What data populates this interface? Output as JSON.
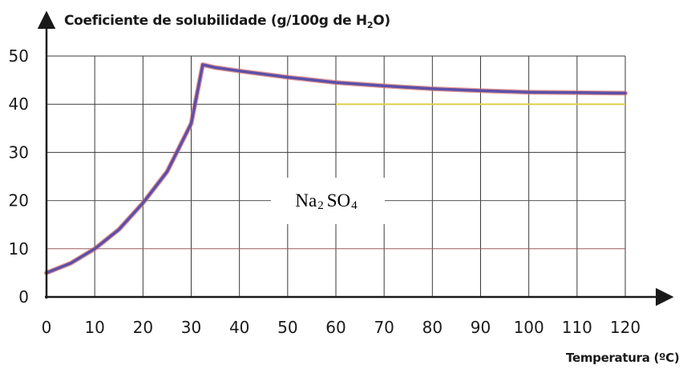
{
  "chart_data": {
    "type": "line",
    "title": "",
    "ylabel_prefix": "Coeficiente de solubilidade (g/100g de H",
    "ylabel_sub": "2",
    "ylabel_suffix": "O)",
    "xlabel": "Temperatura (ºC)",
    "xlim": [
      0,
      120
    ],
    "ylim": [
      0,
      50
    ],
    "xticks": [
      0,
      10,
      20,
      30,
      40,
      50,
      60,
      70,
      80,
      90,
      100,
      110,
      120
    ],
    "yticks": [
      0,
      10,
      20,
      30,
      40,
      50
    ],
    "grid": true,
    "series_label": {
      "prefix": "Na",
      "sub1": "2",
      "middle": " SO",
      "sub2": "4"
    },
    "series": [
      {
        "name": "Na2SO4",
        "color": "#5b4fa8",
        "x": [
          0,
          5,
          10,
          15,
          20,
          25,
          30,
          32.4,
          35,
          40,
          50,
          60,
          70,
          80,
          90,
          100,
          110,
          120
        ],
        "y": [
          5,
          7,
          10,
          14,
          19.5,
          26,
          36,
          48.2,
          47.6,
          46.9,
          45.6,
          44.5,
          43.8,
          43.2,
          42.8,
          42.5,
          42.4,
          42.3
        ]
      }
    ],
    "reference_line": {
      "y": 40,
      "x_from": 60,
      "x_to": 120,
      "color": "#e0cf4a"
    }
  }
}
